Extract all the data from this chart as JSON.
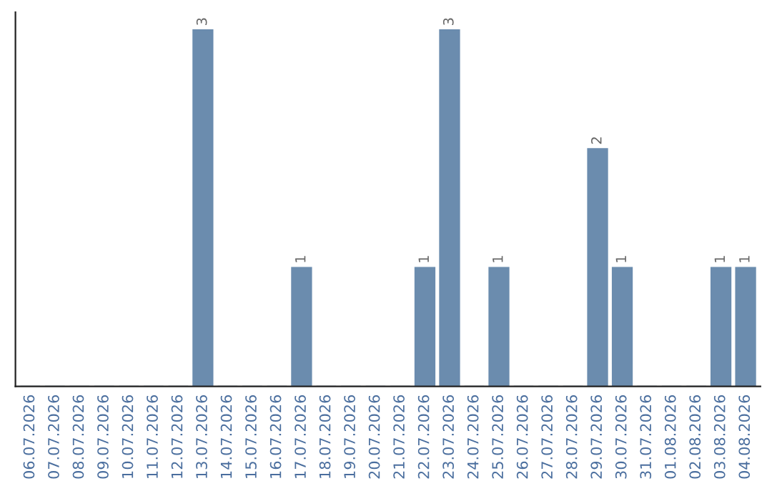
{
  "chart_data": {
    "type": "bar",
    "categories": [
      "06.07.2026",
      "07.07.2026",
      "08.07.2026",
      "09.07.2026",
      "10.07.2026",
      "11.07.2026",
      "12.07.2026",
      "13.07.2026",
      "14.07.2026",
      "15.07.2026",
      "16.07.2026",
      "17.07.2026",
      "18.07.2026",
      "19.07.2026",
      "20.07.2026",
      "21.07.2026",
      "22.07.2026",
      "23.07.2026",
      "24.07.2026",
      "25.07.2026",
      "26.07.2026",
      "27.07.2026",
      "28.07.2026",
      "29.07.2026",
      "30.07.2026",
      "31.07.2026",
      "01.08.2026",
      "02.08.2026",
      "03.08.2026",
      "04.08.2026"
    ],
    "values": [
      0,
      0,
      0,
      0,
      0,
      0,
      0,
      3,
      0,
      0,
      0,
      1,
      0,
      0,
      0,
      0,
      1,
      3,
      0,
      1,
      0,
      0,
      0,
      2,
      1,
      0,
      0,
      0,
      1,
      1
    ],
    "value_labels": [
      null,
      null,
      null,
      null,
      null,
      null,
      null,
      "3",
      null,
      null,
      null,
      "1",
      null,
      null,
      null,
      null,
      "1",
      "3",
      null,
      "1",
      null,
      null,
      null,
      "2",
      "1",
      null,
      null,
      null,
      "1",
      "1"
    ],
    "color": "#6b8cae",
    "tick_labels": "x",
    "grid": false,
    "legend": false
  }
}
